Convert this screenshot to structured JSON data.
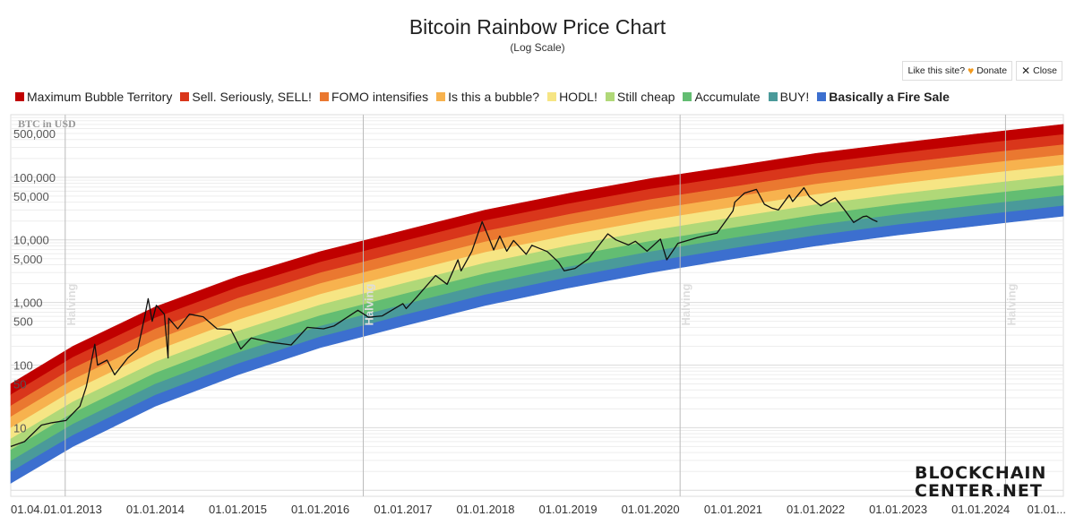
{
  "header": {
    "title": "Bitcoin Rainbow Price Chart",
    "subtitle": "(Log Scale)"
  },
  "buttons": {
    "donate_label": "Like this site?",
    "donate_icon": "heart-icon",
    "donate_text": "Donate",
    "close_icon": "close-icon",
    "close_text": "Close"
  },
  "logo": {
    "line1": "BLOCKCHAIN",
    "line2": "CENTER.NET"
  },
  "chart_data": {
    "type": "area",
    "title": "Bitcoin Rainbow Price Chart",
    "subtitle": "(Log Scale)",
    "ylabel": "BTC in USD",
    "yscale": "log",
    "ylim": [
      0.8,
      1000000
    ],
    "y_ticks": [
      {
        "value": 500000,
        "label": "500,000"
      },
      {
        "value": 100000,
        "label": "100,000"
      },
      {
        "value": 50000,
        "label": "50,000"
      },
      {
        "value": 10000,
        "label": "10,000"
      },
      {
        "value": 5000,
        "label": "5,000"
      },
      {
        "value": 1000,
        "label": "1,000"
      },
      {
        "value": 500,
        "label": "500"
      },
      {
        "value": 100,
        "label": "100"
      },
      {
        "value": 50,
        "label": "50"
      },
      {
        "value": 10,
        "label": "10"
      }
    ],
    "x_start": "2012-04-01",
    "x_end": "2025-01-01",
    "x_ticks": [
      "01.04...",
      "01.01.2013",
      "01.01.2014",
      "01.01.2015",
      "01.01.2016",
      "01.01.2017",
      "01.01.2018",
      "01.01.2019",
      "01.01.2020",
      "01.01.2021",
      "01.01.2022",
      "01.01.2023",
      "01.01.2024",
      "01.01..."
    ],
    "x_tick_dates": [
      "2012-04-01",
      "2013-01-01",
      "2014-01-01",
      "2015-01-01",
      "2016-01-01",
      "2017-01-01",
      "2018-01-01",
      "2019-01-01",
      "2020-01-01",
      "2021-01-01",
      "2022-01-01",
      "2023-01-01",
      "2024-01-01",
      "2025-01-01"
    ],
    "legend_position": "top-left",
    "grid": true,
    "halvings": [
      {
        "date": "2012-11-28",
        "label": "Halving"
      },
      {
        "date": "2016-07-09",
        "label": "Halving"
      },
      {
        "date": "2020-05-11",
        "label": "Halving"
      },
      {
        "date": "2024-04-20",
        "label": "Halving"
      }
    ],
    "bands": [
      {
        "name": "Maximum Bubble Territory",
        "color": "#c00000",
        "bold": false
      },
      {
        "name": "Sell. Seriously, SELL!",
        "color": "#d9361b",
        "bold": false
      },
      {
        "name": "FOMO intensifies",
        "color": "#ea7830",
        "bold": false
      },
      {
        "name": "Is this a bubble?",
        "color": "#f7b24e",
        "bold": false
      },
      {
        "name": "HODL!",
        "color": "#f6e584",
        "bold": false
      },
      {
        "name": "Still cheap",
        "color": "#b0d878",
        "bold": false
      },
      {
        "name": "Accumulate",
        "color": "#63bd72",
        "bold": false
      },
      {
        "name": "BUY!",
        "color": "#4a9a9a",
        "bold": false
      },
      {
        "name": "Basically a Fire Sale",
        "color": "#3c6fcf",
        "bold": true
      }
    ],
    "band_bounds_top": [
      {
        "date": "2012-04-01",
        "price": 50
      },
      {
        "date": "2013-01-01",
        "price": 200
      },
      {
        "date": "2014-01-01",
        "price": 850
      },
      {
        "date": "2015-01-01",
        "price": 2600
      },
      {
        "date": "2016-01-01",
        "price": 6500
      },
      {
        "date": "2017-01-01",
        "price": 14000
      },
      {
        "date": "2018-01-01",
        "price": 30000
      },
      {
        "date": "2019-01-01",
        "price": 55000
      },
      {
        "date": "2020-01-01",
        "price": 95000
      },
      {
        "date": "2021-01-01",
        "price": 150000
      },
      {
        "date": "2022-01-01",
        "price": 240000
      },
      {
        "date": "2023-01-01",
        "price": 350000
      },
      {
        "date": "2024-01-01",
        "price": 500000
      },
      {
        "date": "2025-01-01",
        "price": 700000
      }
    ],
    "band_bounds_bottom": [
      {
        "date": "2012-04-01",
        "price": 1.3
      },
      {
        "date": "2013-01-01",
        "price": 5
      },
      {
        "date": "2014-01-01",
        "price": 22
      },
      {
        "date": "2015-01-01",
        "price": 70
      },
      {
        "date": "2016-01-01",
        "price": 190
      },
      {
        "date": "2017-01-01",
        "price": 420
      },
      {
        "date": "2018-01-01",
        "price": 900
      },
      {
        "date": "2019-01-01",
        "price": 1700
      },
      {
        "date": "2020-01-01",
        "price": 3000
      },
      {
        "date": "2021-01-01",
        "price": 5000
      },
      {
        "date": "2022-01-01",
        "price": 8000
      },
      {
        "date": "2023-01-01",
        "price": 12000
      },
      {
        "date": "2024-01-01",
        "price": 17000
      },
      {
        "date": "2025-01-01",
        "price": 24000
      }
    ],
    "series": [
      {
        "name": "BTC price",
        "color": "#111111",
        "points": [
          [
            "2012-04-01",
            5
          ],
          [
            "2012-06-01",
            6
          ],
          [
            "2012-08-15",
            11
          ],
          [
            "2012-10-01",
            12
          ],
          [
            "2012-12-01",
            13
          ],
          [
            "2013-02-01",
            22
          ],
          [
            "2013-03-01",
            45
          ],
          [
            "2013-04-08",
            215
          ],
          [
            "2013-04-20",
            100
          ],
          [
            "2013-06-01",
            120
          ],
          [
            "2013-07-05",
            70
          ],
          [
            "2013-09-01",
            130
          ],
          [
            "2013-10-15",
            180
          ],
          [
            "2013-11-15",
            600
          ],
          [
            "2013-11-30",
            1150
          ],
          [
            "2013-12-18",
            500
          ],
          [
            "2014-01-05",
            900
          ],
          [
            "2014-02-10",
            650
          ],
          [
            "2014-02-26",
            130
          ],
          [
            "2014-03-01",
            560
          ],
          [
            "2014-04-10",
            380
          ],
          [
            "2014-06-01",
            650
          ],
          [
            "2014-08-01",
            590
          ],
          [
            "2014-10-01",
            380
          ],
          [
            "2014-12-01",
            370
          ],
          [
            "2015-01-14",
            180
          ],
          [
            "2015-03-01",
            270
          ],
          [
            "2015-06-01",
            230
          ],
          [
            "2015-08-25",
            210
          ],
          [
            "2015-11-04",
            400
          ],
          [
            "2016-01-15",
            380
          ],
          [
            "2016-03-01",
            420
          ],
          [
            "2016-06-15",
            750
          ],
          [
            "2016-08-01",
            580
          ],
          [
            "2016-10-01",
            610
          ],
          [
            "2016-12-31",
            960
          ],
          [
            "2017-01-15",
            800
          ],
          [
            "2017-03-01",
            1200
          ],
          [
            "2017-05-25",
            2700
          ],
          [
            "2017-07-15",
            1950
          ],
          [
            "2017-09-01",
            4800
          ],
          [
            "2017-09-15",
            3200
          ],
          [
            "2017-11-01",
            6500
          ],
          [
            "2017-12-17",
            19500
          ],
          [
            "2018-01-15",
            11000
          ],
          [
            "2018-02-06",
            6900
          ],
          [
            "2018-03-05",
            11500
          ],
          [
            "2018-04-05",
            6600
          ],
          [
            "2018-05-05",
            9800
          ],
          [
            "2018-06-30",
            5900
          ],
          [
            "2018-07-25",
            8200
          ],
          [
            "2018-10-01",
            6500
          ],
          [
            "2018-11-20",
            4400
          ],
          [
            "2018-12-15",
            3200
          ],
          [
            "2019-02-01",
            3500
          ],
          [
            "2019-04-02",
            5000
          ],
          [
            "2019-06-26",
            12500
          ],
          [
            "2019-08-01",
            10000
          ],
          [
            "2019-09-25",
            8300
          ],
          [
            "2019-10-26",
            9500
          ],
          [
            "2019-12-17",
            6600
          ],
          [
            "2020-02-14",
            10300
          ],
          [
            "2020-03-13",
            4800
          ],
          [
            "2020-05-01",
            8800
          ],
          [
            "2020-07-27",
            10900
          ],
          [
            "2020-10-21",
            12800
          ],
          [
            "2020-12-31",
            29000
          ],
          [
            "2021-01-08",
            40000
          ],
          [
            "2021-02-20",
            56000
          ],
          [
            "2021-04-14",
            64000
          ],
          [
            "2021-05-19",
            37000
          ],
          [
            "2021-06-22",
            32000
          ],
          [
            "2021-07-20",
            30000
          ],
          [
            "2021-09-06",
            52000
          ],
          [
            "2021-09-21",
            41000
          ],
          [
            "2021-11-10",
            68000
          ],
          [
            "2021-12-04",
            49000
          ],
          [
            "2022-01-24",
            35000
          ],
          [
            "2022-03-28",
            47000
          ],
          [
            "2022-05-12",
            29000
          ],
          [
            "2022-06-18",
            19000
          ],
          [
            "2022-07-30",
            23500
          ],
          [
            "2022-08-15",
            24000
          ],
          [
            "2022-09-10",
            21000
          ],
          [
            "2022-10-01",
            19500
          ]
        ]
      }
    ]
  }
}
